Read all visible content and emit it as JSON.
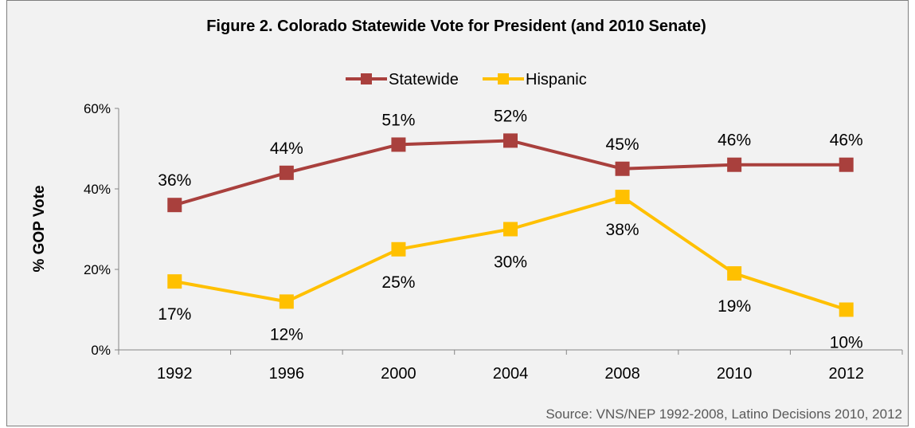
{
  "chart_data": {
    "type": "line",
    "title": "Figure 2. Colorado Statewide Vote for President (and 2010 Senate)",
    "ylabel": "% GOP  Vote",
    "xlabel": "",
    "categories": [
      "1992",
      "1996",
      "2000",
      "2004",
      "2008",
      "2010",
      "2012"
    ],
    "yticks": [
      "0%",
      "20%",
      "40%",
      "60%"
    ],
    "ylim": [
      0,
      60
    ],
    "grid": false,
    "legend_position": "top-center",
    "series": [
      {
        "name": "Statewide",
        "color": "#a9403d",
        "values": [
          36,
          44,
          51,
          52,
          45,
          46,
          46
        ],
        "labels": [
          "36%",
          "44%",
          "51%",
          "52%",
          "45%",
          "46%",
          "46%"
        ],
        "label_position": "above"
      },
      {
        "name": "Hispanic",
        "color": "#ffc000",
        "values": [
          17,
          12,
          25,
          30,
          38,
          19,
          10
        ],
        "labels": [
          "17%",
          "12%",
          "25%",
          "30%",
          "38%",
          "19%",
          "10%"
        ],
        "label_position": "below"
      }
    ],
    "source": "Source: VNS/NEP 1992-2008, Latino Decisions 2010, 2012"
  }
}
